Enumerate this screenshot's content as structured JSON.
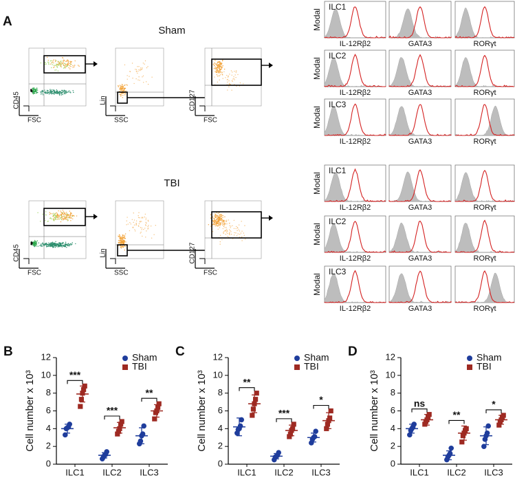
{
  "figure": {
    "panel_a": {
      "label": "A",
      "groups": [
        {
          "title": "Sham",
          "gating": [
            {
              "x": "FSC",
              "y": "CD45"
            },
            {
              "x": "SSC",
              "y": "Lin"
            },
            {
              "x": "FSC",
              "y": "CD127"
            }
          ],
          "histogram_rows": [
            {
              "cell": "ILC1",
              "ylabel": "Modal",
              "markers": [
                "IL-12Rβ2",
                "GATA3",
                "RORγt"
              ]
            },
            {
              "cell": "ILC2",
              "ylabel": "Modal",
              "markers": [
                "IL-12Rβ2",
                "GATA3",
                "RORγt"
              ]
            },
            {
              "cell": "ILC3",
              "ylabel": "Modal",
              "markers": [
                "IL-12Rβ2",
                "GATA3",
                "RORγt"
              ]
            }
          ]
        },
        {
          "title": "TBI",
          "gating": [
            {
              "x": "FSC",
              "y": "CD45"
            },
            {
              "x": "SSC",
              "y": "Lin"
            },
            {
              "x": "FSC",
              "y": "CD127"
            }
          ],
          "histogram_rows": [
            {
              "cell": "ILC1",
              "ylabel": "Modal",
              "markers": [
                "IL-12Rβ2",
                "GATA3",
                "RORγt"
              ]
            },
            {
              "cell": "ILC2",
              "ylabel": "Modal",
              "markers": [
                "IL-12Rβ2",
                "GATA3",
                "RORγt"
              ]
            },
            {
              "cell": "ILC3",
              "ylabel": "Modal",
              "markers": [
                "IL-12Rβ2",
                "GATA3",
                "RORγt"
              ]
            }
          ]
        }
      ]
    }
  },
  "chart_data": [
    {
      "type": "dot",
      "panel": "B",
      "ylabel": "Cell number x 10³",
      "categories": [
        "ILC1",
        "ILC2",
        "ILC3"
      ],
      "ylim": [
        0,
        12
      ],
      "yticks": [
        0,
        2,
        4,
        6,
        8,
        10,
        12
      ],
      "series": [
        {
          "name": "Sham",
          "color": "#1f3d9c",
          "marker": "circle",
          "values": [
            4.0,
            1.0,
            3.2
          ],
          "errors": [
            0.5,
            0.3,
            0.9
          ],
          "points": [
            [
              3.3,
              4.0,
              4.1,
              4.2,
              4.5
            ],
            [
              0.6,
              0.8,
              1.0,
              1.1,
              1.4
            ],
            [
              2.3,
              2.6,
              3.2,
              3.4,
              4.3
            ]
          ]
        },
        {
          "name": "TBI",
          "color": "#9e2a22",
          "marker": "square",
          "values": [
            7.9,
            4.1,
            6.0
          ],
          "errors": [
            0.9,
            0.6,
            0.7
          ],
          "points": [
            [
              6.5,
              7.3,
              8.0,
              8.4,
              8.8
            ],
            [
              3.4,
              3.7,
              4.0,
              4.5,
              4.8
            ],
            [
              5.1,
              5.8,
              6.0,
              6.4,
              6.8
            ]
          ]
        }
      ],
      "annotations": [
        "***",
        "***",
        "**"
      ]
    },
    {
      "type": "dot",
      "panel": "C",
      "ylabel": "Cell number x 10³",
      "categories": [
        "ILC1",
        "ILC2",
        "ILC3"
      ],
      "ylim": [
        0,
        12
      ],
      "yticks": [
        0,
        2,
        4,
        6,
        8,
        10,
        12
      ],
      "series": [
        {
          "name": "Sham",
          "color": "#1f3d9c",
          "marker": "circle",
          "values": [
            4.2,
            0.9,
            3.0
          ],
          "errors": [
            1.0,
            0.3,
            0.5
          ],
          "points": [
            [
              3.5,
              3.9,
              4.0,
              4.3,
              5.0
            ],
            [
              0.5,
              0.8,
              0.9,
              1.0,
              1.3
            ],
            [
              2.4,
              2.8,
              3.0,
              3.1,
              3.7
            ]
          ]
        },
        {
          "name": "TBI",
          "color": "#9e2a22",
          "marker": "square",
          "values": [
            6.8,
            3.8,
            4.9
          ],
          "errors": [
            1.0,
            0.6,
            0.9
          ],
          "points": [
            [
              5.5,
              6.2,
              6.8,
              7.3,
              8.0
            ],
            [
              3.1,
              3.4,
              3.8,
              4.0,
              4.5
            ],
            [
              4.0,
              4.5,
              4.9,
              5.2,
              6.0
            ]
          ]
        }
      ],
      "annotations": [
        "**",
        "***",
        "*"
      ]
    },
    {
      "type": "dot",
      "panel": "D",
      "ylabel": "Cell number x 10³",
      "categories": [
        "ILC1",
        "ILC2",
        "ILC3"
      ],
      "ylim": [
        0,
        12
      ],
      "yticks": [
        0,
        2,
        4,
        6,
        8,
        10,
        12
      ],
      "series": [
        {
          "name": "Sham",
          "color": "#1f3d9c",
          "marker": "circle",
          "values": [
            4.0,
            1.0,
            3.2
          ],
          "errors": [
            0.5,
            0.5,
            1.0
          ],
          "points": [
            [
              3.3,
              3.8,
              4.0,
              4.2,
              4.5
            ],
            [
              0.5,
              0.8,
              1.0,
              1.2,
              1.8
            ],
            [
              2.0,
              2.8,
              3.2,
              3.5,
              4.3
            ]
          ]
        },
        {
          "name": "TBI",
          "color": "#9e2a22",
          "marker": "square",
          "values": [
            5.0,
            3.5,
            5.0
          ],
          "errors": [
            0.6,
            0.8,
            0.5
          ],
          "points": [
            [
              4.5,
              4.8,
              5.0,
              5.3,
              5.6
            ],
            [
              2.5,
              3.2,
              3.5,
              3.8,
              4.0
            ],
            [
              4.4,
              4.8,
              5.0,
              5.3,
              5.5
            ]
          ]
        }
      ],
      "annotations": [
        "ns",
        "**",
        "*"
      ]
    }
  ]
}
